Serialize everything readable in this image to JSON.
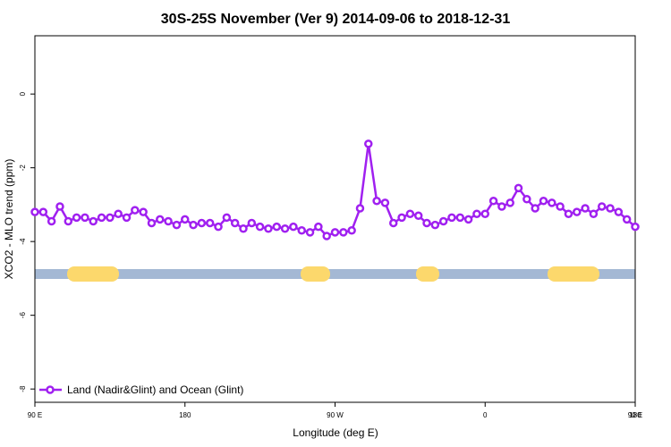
{
  "chart_data": {
    "type": "line",
    "title": "30S-25S November (Ver 9)   2014-09-06 to 2018-12-31",
    "x_label": "Longitude (deg E)",
    "y_label": "XCO2 - MLO trend (ppm)",
    "x": [
      90,
      95,
      100,
      105,
      110,
      115,
      120,
      125,
      130,
      135,
      140,
      145,
      150,
      155,
      160,
      165,
      170,
      175,
      180,
      185,
      190,
      195,
      200,
      205,
      210,
      215,
      220,
      225,
      230,
      235,
      240,
      245,
      250,
      255,
      260,
      265,
      270,
      275,
      280,
      285,
      290,
      295,
      300,
      305,
      310,
      315,
      320,
      325,
      330,
      335,
      340,
      345,
      350,
      355,
      360,
      365,
      370,
      375,
      380,
      385,
      390,
      395,
      400,
      405,
      410,
      415,
      420,
      425,
      430,
      435,
      440,
      445,
      450
    ],
    "series": [
      {
        "name": "Land (Nadir&Glint) and Ocean (Glint)",
        "color": "#a020f0",
        "values": [
          -3.2,
          -3.2,
          -3.45,
          -3.05,
          -3.45,
          -3.35,
          -3.35,
          -3.45,
          -3.35,
          -3.35,
          -3.25,
          -3.35,
          -3.15,
          -3.2,
          -3.5,
          -3.4,
          -3.45,
          -3.55,
          -3.4,
          -3.55,
          -3.5,
          -3.5,
          -3.6,
          -3.35,
          -3.5,
          -3.65,
          -3.5,
          -3.6,
          -3.65,
          -3.6,
          -3.65,
          -3.6,
          -3.7,
          -3.75,
          -3.6,
          -3.85,
          -3.75,
          -3.75,
          -3.7,
          -3.1,
          -1.35,
          -2.9,
          -2.95,
          -3.5,
          -3.35,
          -3.25,
          -3.3,
          -3.5,
          -3.55,
          -3.45,
          -3.35,
          -3.35,
          -3.4,
          -3.25,
          -3.25,
          -2.9,
          -3.05,
          -2.95,
          -2.55,
          -2.85,
          -3.1,
          -2.9,
          -2.95,
          -3.05,
          -3.25,
          -3.2,
          -3.1,
          -3.25,
          -3.05,
          -3.1,
          -3.2,
          -3.4,
          -3.6
        ]
      }
    ],
    "xlim": [
      90,
      450
    ],
    "xticks": [
      {
        "value": 90,
        "label": "90 E"
      },
      180,
      {
        "value": 270,
        "label": "90 W"
      },
      {
        "value": 360,
        "label": "0"
      },
      {
        "value": 450,
        "label": "90 E"
      },
      {
        "value": 540,
        "label": "180"
      }
    ],
    "ylim": [
      1.58,
      -8.36
    ],
    "yticks": [
      0,
      -2,
      -4,
      -6,
      -8
    ],
    "legend": "bottom-left"
  }
}
